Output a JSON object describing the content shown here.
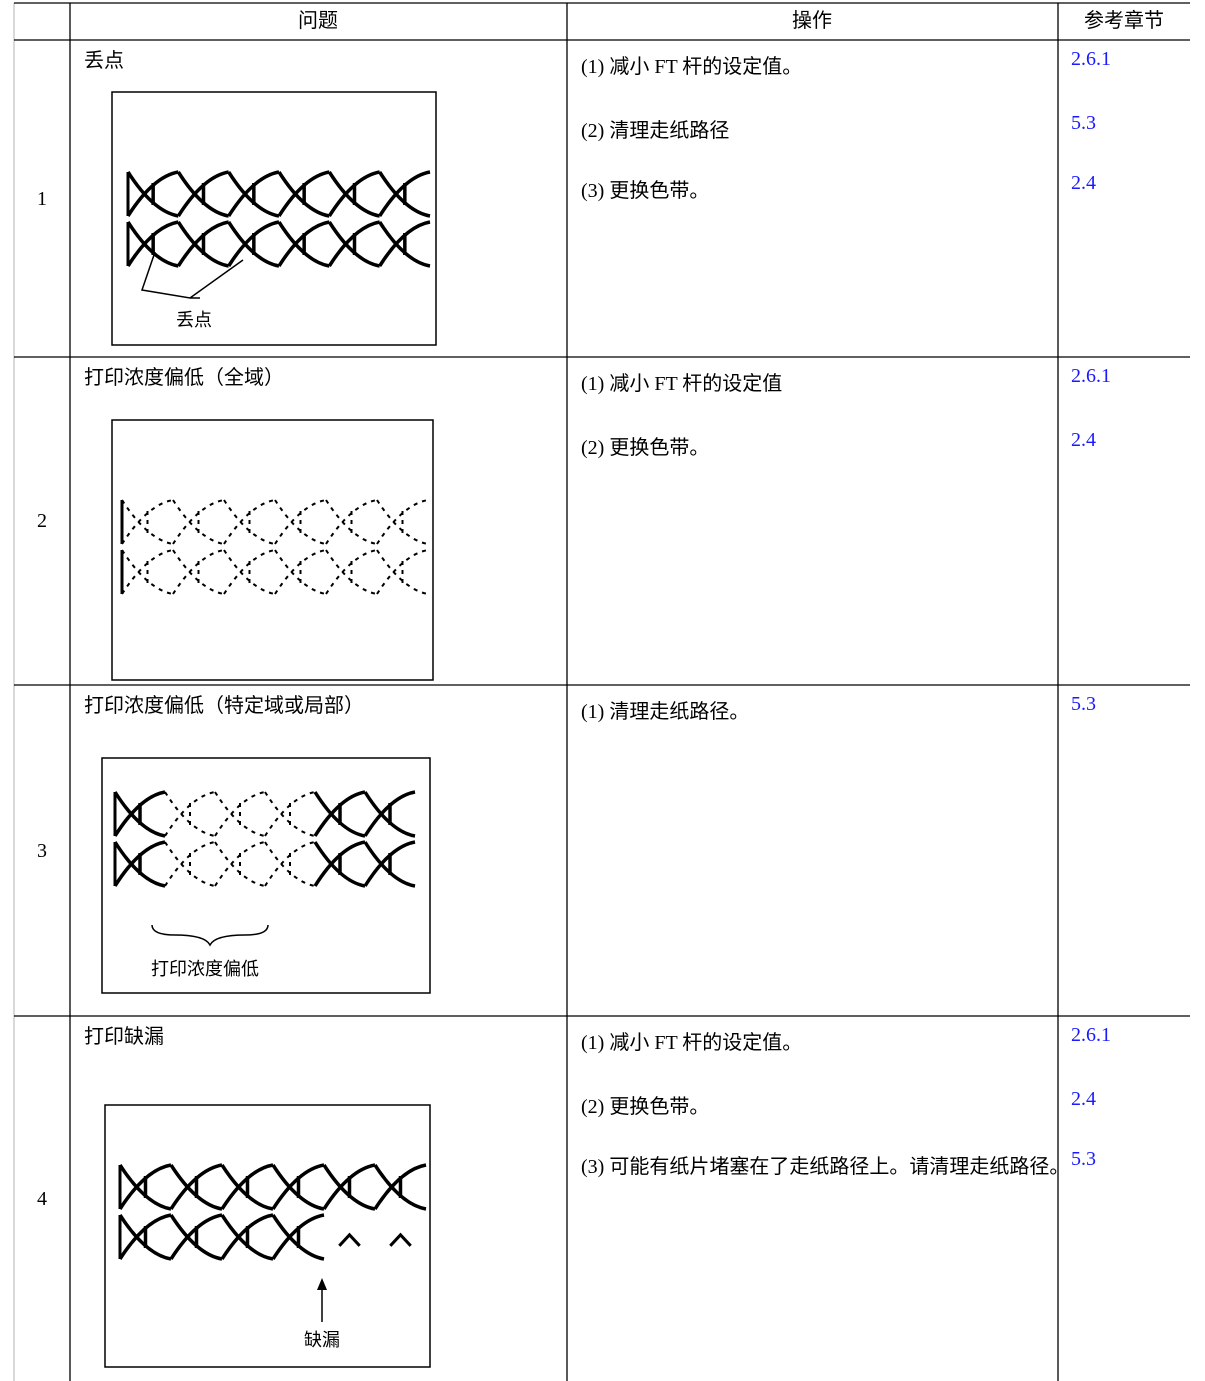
{
  "table": {
    "header": {
      "problem": "问题",
      "action": "操作",
      "reference": "参考章节"
    },
    "rows": [
      {
        "number": 1,
        "problem": "丢点",
        "figure_label": "丢点",
        "actions": [
          "(1) 减小 FT 杆的设定值。",
          "(2) 清理走纸路径",
          "(3) 更换色带。"
        ],
        "references": [
          "2.6.1",
          "5.3",
          "2.4"
        ]
      },
      {
        "number": 2,
        "problem": "打印浓度偏低（全域）",
        "actions": [
          "(1) 减小 FT 杆的设定值",
          "(2) 更换色带。"
        ],
        "references": [
          "2.6.1",
          "2.4"
        ]
      },
      {
        "number": 3,
        "problem": "打印浓度偏低（特定域或局部）",
        "figure_label": "打印浓度偏低",
        "actions": [
          "(1) 清理走纸路径。"
        ],
        "references": [
          "5.3"
        ]
      },
      {
        "number": 4,
        "problem": "打印缺漏",
        "figure_label": "缺漏",
        "actions": [
          "(1) 减小 FT 杆的设定值。",
          "(2) 更换色带。",
          "(3) 可能有纸片堵塞在了走纸路径上。请清理走纸路径。"
        ],
        "references": [
          "2.6.1",
          "2.4",
          "5.3"
        ]
      }
    ]
  }
}
